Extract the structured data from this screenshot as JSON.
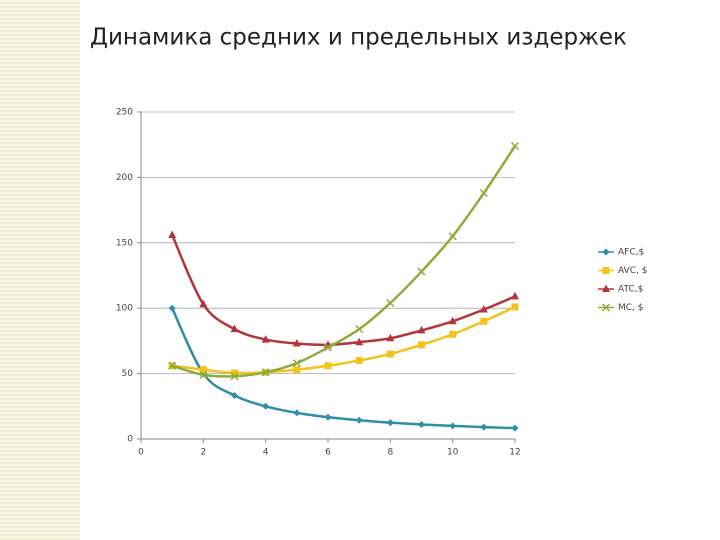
{
  "chart_data": {
    "type": "line",
    "title": "Динамика средних и предельных издержек",
    "x": [
      1,
      2,
      3,
      4,
      5,
      6,
      7,
      8,
      9,
      10,
      11,
      12
    ],
    "series": [
      {
        "name": "AFC,$",
        "color": "#2f8ea8",
        "marker": "diamond",
        "values": [
          100,
          50,
          33.3,
          25,
          20,
          16.7,
          14.3,
          12.5,
          11.1,
          10,
          9.1,
          8.3
        ]
      },
      {
        "name": "AVC, $",
        "color": "#f4c21b",
        "marker": "square",
        "values": [
          56,
          53,
          50.5,
          51,
          53,
          56,
          60,
          65,
          72,
          80,
          90,
          101
        ]
      },
      {
        "name": "ATC,$",
        "color": "#b1353b",
        "marker": "triangle",
        "values": [
          156,
          103,
          84,
          76,
          73,
          72,
          74,
          77,
          83,
          90,
          99,
          109
        ]
      },
      {
        "name": "MC, $",
        "color": "#8dac3b",
        "marker": "x",
        "values": [
          56,
          49,
          48,
          51,
          58,
          70,
          84,
          104,
          128,
          155,
          188,
          224
        ]
      }
    ],
    "xlim": [
      0,
      12
    ],
    "xticks": [
      0,
      2,
      4,
      6,
      8,
      10,
      12
    ],
    "ylim": [
      0,
      250
    ],
    "yticks": [
      0,
      50,
      100,
      150,
      200,
      250
    ],
    "grid": true,
    "legend": "right"
  }
}
